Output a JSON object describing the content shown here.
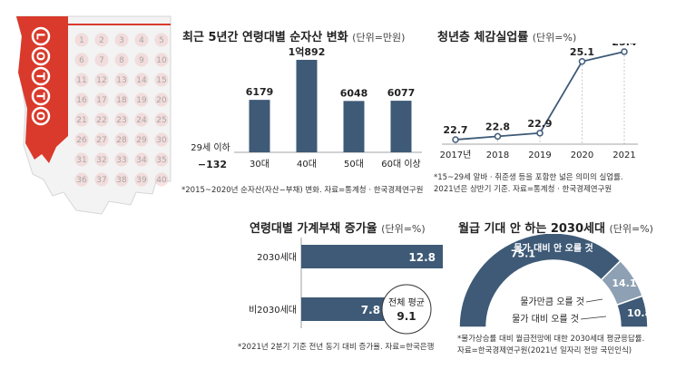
{
  "colors": {
    "bar": "#3e5a77",
    "line": "#3e5a77",
    "accent_red": "#d93a2b",
    "lotto_pink": "#f0c8c8",
    "torn_edge": "#dddddd",
    "arc_light": "#8ea0b3"
  },
  "lotto": {
    "brand": "LOTTO",
    "numbers": [
      [
        "1",
        "2",
        "3",
        "4",
        "5"
      ],
      [
        "6",
        "7",
        "8",
        "9",
        "10"
      ],
      [
        "11",
        "12",
        "13",
        "14",
        "15"
      ],
      [
        "16",
        "17",
        "18",
        "19",
        "20"
      ],
      [
        "21",
        "22",
        "23",
        "24",
        "25"
      ],
      [
        "26",
        "27",
        "28",
        "29",
        "30"
      ],
      [
        "31",
        "32",
        "33",
        "34",
        "35"
      ],
      [
        "36",
        "37",
        "38",
        "39",
        "40"
      ]
    ]
  },
  "chart_data": [
    {
      "id": "net-assets",
      "type": "bar",
      "title": "최근 5년간 연령대별 순자산 변화",
      "unit": "(단위=만원)",
      "categories": [
        "29세 이하",
        "30대",
        "40대",
        "50대",
        "60대 이상"
      ],
      "values": [
        -132,
        6179,
        10892,
        6048,
        6077
      ],
      "value_labels": [
        "−132",
        "6179",
        "1억892",
        "6048",
        "6077"
      ],
      "ylim": [
        -132,
        10892
      ],
      "note": [
        "*2015~2020년 순자산(자산−부채) 변화. 자료=통계청 · 한국경제연구원"
      ]
    },
    {
      "id": "youth-unemployment",
      "type": "line",
      "title": "청년층 체감실업률",
      "unit": "(단위=%)",
      "x": [
        "2017년",
        "2018",
        "2019",
        "2020",
        "2021"
      ],
      "values": [
        22.7,
        22.8,
        22.9,
        25.1,
        25.4
      ],
      "value_labels": [
        "22.7",
        "22.8",
        "22.9",
        "25.1",
        "25.4"
      ],
      "ylim": [
        22.7,
        25.4
      ],
      "note": [
        "*15~29세 알바 · 취준생 등을 포함한 넓은 의미의 실업률.",
        "2021년은 상반기 기준. 자료=통계청 · 한국경제연구원"
      ]
    },
    {
      "id": "debt-growth",
      "type": "bar",
      "orientation": "horizontal",
      "title": "연령대별 가계부채 증가율",
      "unit": "(단위=%)",
      "categories": [
        "2030세대",
        "비2030세대"
      ],
      "values": [
        12.8,
        7.8
      ],
      "value_labels": [
        "12.8",
        "7.8"
      ],
      "xlim": [
        0,
        12.8
      ],
      "annotation": {
        "label": "전체 평균",
        "value": "9.1"
      },
      "note": [
        "*2021년 2분기 기준 전년 동기 대비 증가율. 자료=한국은행"
      ]
    },
    {
      "id": "wage-expectation",
      "type": "pie",
      "shape": "semi-donut",
      "title": "월급 기대 안 하는 2030세대",
      "unit": "(단위=%)",
      "slices": [
        {
          "label": "물가 대비 안 오를 것",
          "value": 75.1,
          "value_label": "75.1"
        },
        {
          "label": "물가만큼 오를 것",
          "value": 14.1,
          "value_label": "14.1"
        },
        {
          "label": "물가 대비 오를 것",
          "value": 10.8,
          "value_label": "10.8"
        }
      ],
      "note": [
        "*물가상승률 대비 월급전망에 대한 2030세대 평균응답률.",
        "자료=한국경제연구원(2021년 일자리 전망 국민인식)"
      ]
    }
  ]
}
